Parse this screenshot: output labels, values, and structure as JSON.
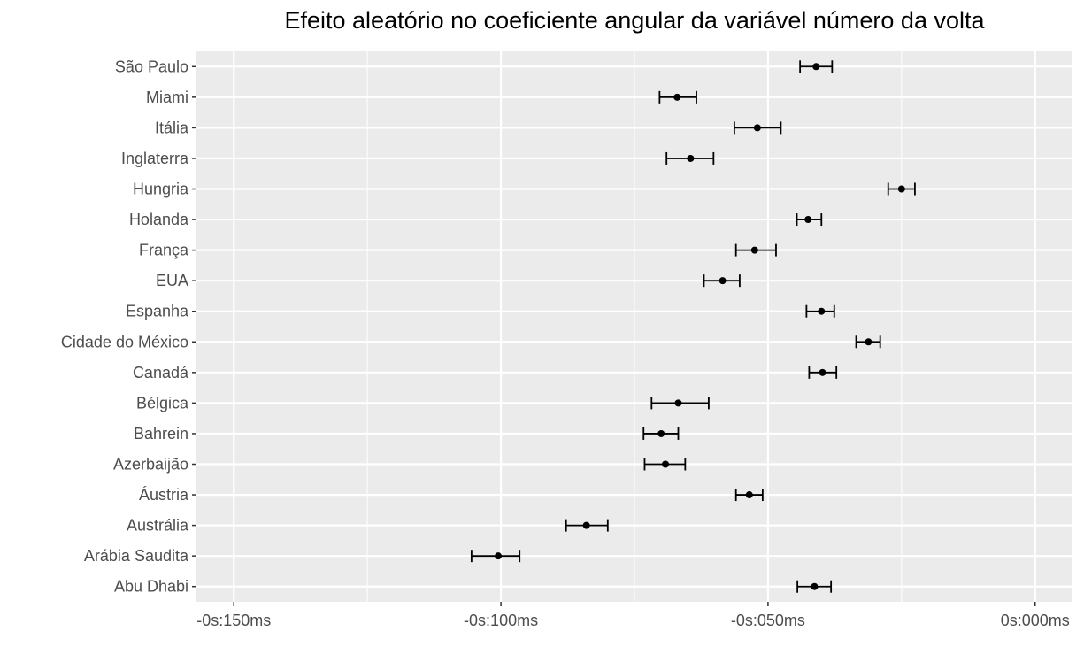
{
  "chart_data": {
    "type": "errorbar",
    "title": "Efeito aleatório no coeficiente angular da variável número da volta",
    "xlabel": "",
    "ylabel": "",
    "x_unit": "ms",
    "xlim": [
      -157,
      7
    ],
    "x_ticks": [
      {
        "value": -150,
        "label": "-0s:150ms"
      },
      {
        "value": -100,
        "label": "-0s:100ms"
      },
      {
        "value": -50,
        "label": "-0s:050ms"
      },
      {
        "value": 0,
        "label": "0s:000ms"
      }
    ],
    "x_minor_ticks": [
      -125,
      -75,
      -25
    ],
    "grid": true,
    "categories": [
      "São Paulo",
      "Miami",
      "Itália",
      "Inglaterra",
      "Hungria",
      "Holanda",
      "França",
      "EUA",
      "Espanha",
      "Cidade do México",
      "Canadá",
      "Bélgica",
      "Bahrein",
      "Azerbaijão",
      "Áustria",
      "Austrália",
      "Arábia Saudita",
      "Abu Dhabi"
    ],
    "points": [
      {
        "label": "São Paulo",
        "estimate": -41.0,
        "lower": -44.0,
        "upper": -38.0
      },
      {
        "label": "Miami",
        "estimate": -67.0,
        "lower": -70.3,
        "upper": -63.4
      },
      {
        "label": "Itália",
        "estimate": -52.0,
        "lower": -56.3,
        "upper": -47.6
      },
      {
        "label": "Inglaterra",
        "estimate": -64.5,
        "lower": -69.0,
        "upper": -60.2
      },
      {
        "label": "Hungria",
        "estimate": -25.0,
        "lower": -27.5,
        "upper": -22.5
      },
      {
        "label": "Holanda",
        "estimate": -42.5,
        "lower": -44.6,
        "upper": -40.0
      },
      {
        "label": "França",
        "estimate": -52.5,
        "lower": -56.0,
        "upper": -48.5
      },
      {
        "label": "EUA",
        "estimate": -58.5,
        "lower": -62.0,
        "upper": -55.3
      },
      {
        "label": "Espanha",
        "estimate": -40.0,
        "lower": -42.8,
        "upper": -37.6
      },
      {
        "label": "Cidade do México",
        "estimate": -31.2,
        "lower": -33.5,
        "upper": -29.0
      },
      {
        "label": "Canadá",
        "estimate": -39.8,
        "lower": -42.3,
        "upper": -37.2
      },
      {
        "label": "Bélgica",
        "estimate": -66.8,
        "lower": -71.8,
        "upper": -61.1
      },
      {
        "label": "Bahrein",
        "estimate": -70.0,
        "lower": -73.3,
        "upper": -66.8
      },
      {
        "label": "Azerbaijão",
        "estimate": -69.2,
        "lower": -73.1,
        "upper": -65.5
      },
      {
        "label": "Áustria",
        "estimate": -53.5,
        "lower": -56.0,
        "upper": -51.0
      },
      {
        "label": "Austrália",
        "estimate": -84.0,
        "lower": -87.8,
        "upper": -80.0
      },
      {
        "label": "Arábia Saudita",
        "estimate": -100.5,
        "lower": -105.5,
        "upper": -96.5
      },
      {
        "label": "Abu Dhabi",
        "estimate": -41.3,
        "lower": -44.5,
        "upper": -38.2
      }
    ],
    "colors": {
      "panel": "#ebebeb",
      "grid_major": "#ffffff",
      "marks": "#000000",
      "tick_label": "#4d4d4d"
    }
  }
}
